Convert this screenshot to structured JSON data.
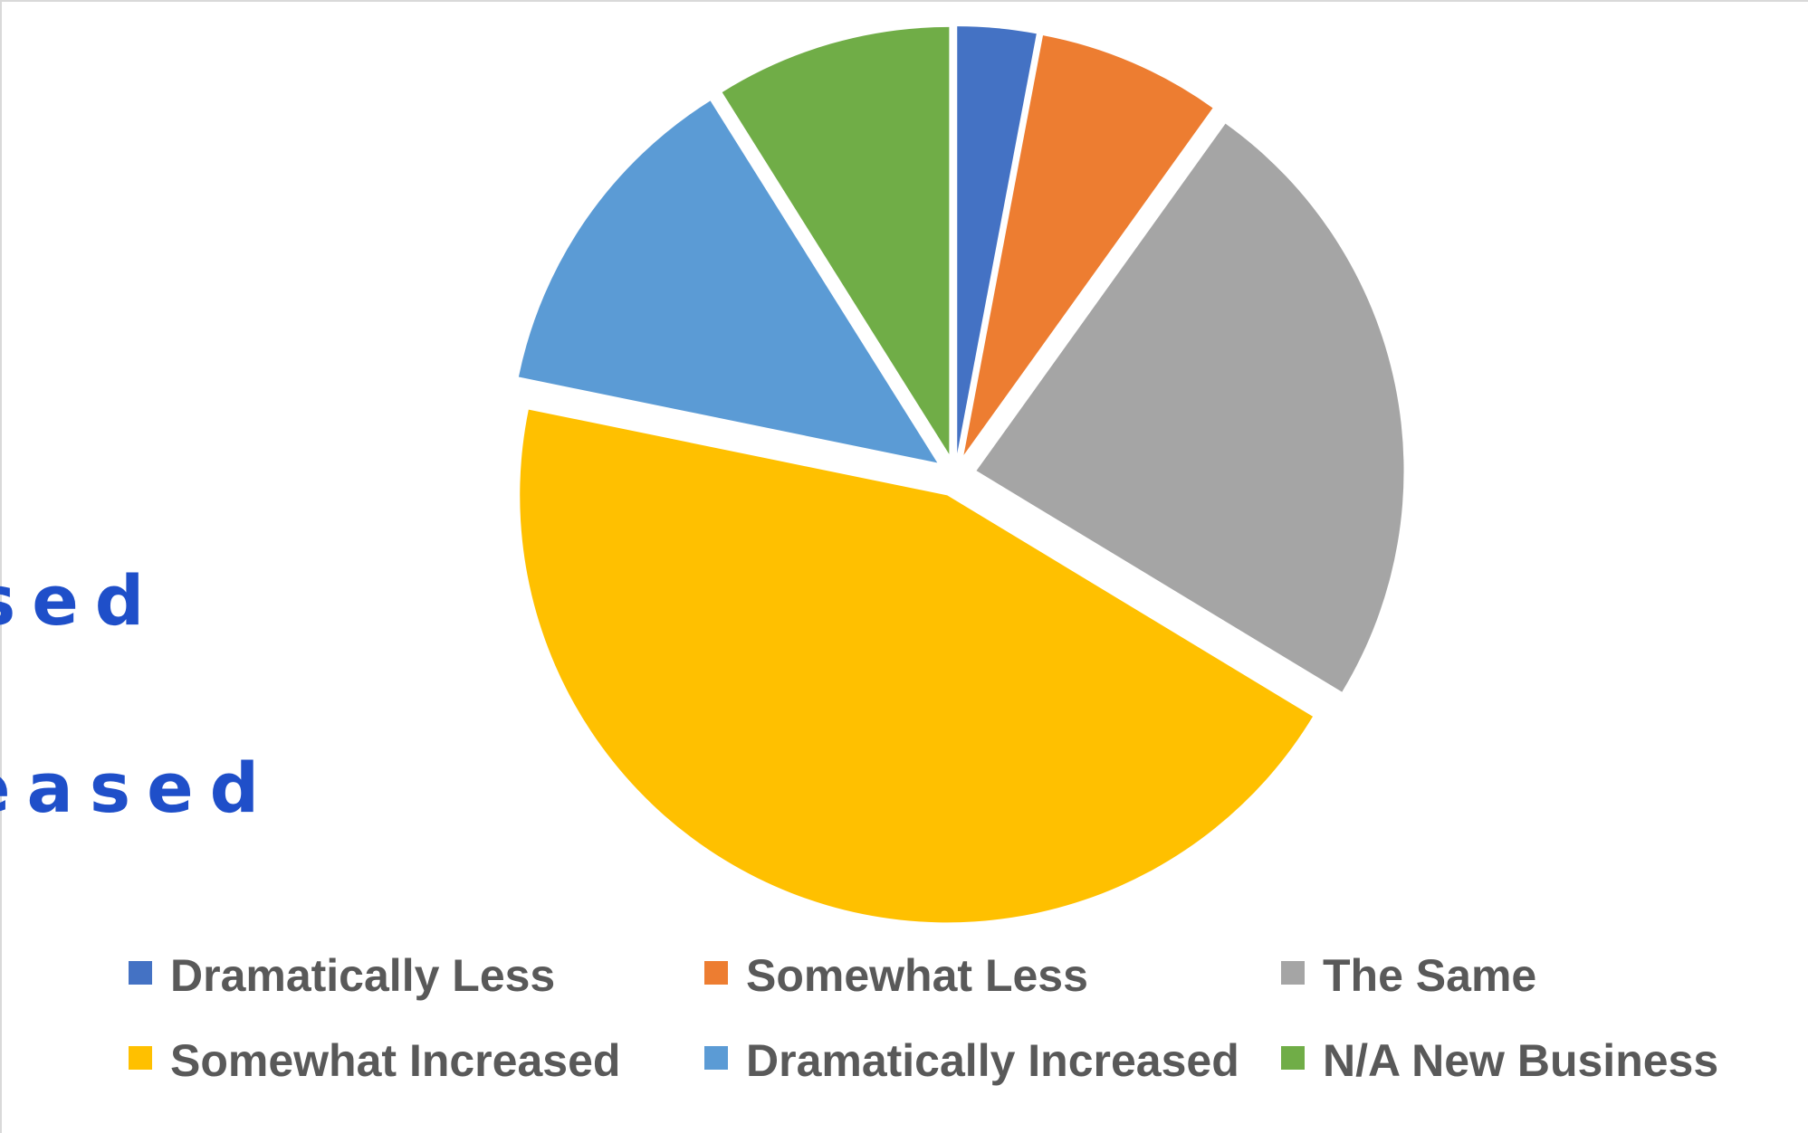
{
  "background_text": [
    "sed",
    "eased"
  ],
  "chart_data": {
    "type": "pie",
    "title": "",
    "categories": [
      "Dramatically Less",
      "Somewhat Less",
      "The Same",
      "Somewhat Increased",
      "Dramatically Increased",
      "N/A New Business"
    ],
    "values": [
      3,
      7,
      24,
      45,
      13,
      9
    ],
    "unit": "%",
    "exploded": true,
    "legend_position": "bottom",
    "colors": [
      "#4472c4",
      "#ed7d31",
      "#a5a5a5",
      "#ffc000",
      "#5b9bd5",
      "#70ad47"
    ]
  }
}
